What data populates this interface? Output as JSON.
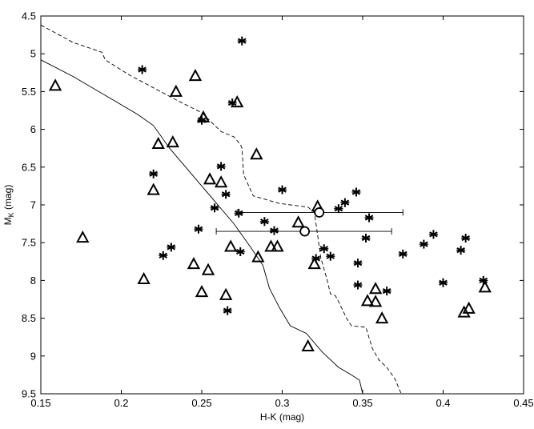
{
  "chart_data": {
    "type": "scatter",
    "title": "",
    "xlabel": "H-K (mag)",
    "ylabel_main": "M",
    "ylabel_sub": "K",
    "ylabel_unit": " (mag)",
    "xlim": [
      0.15,
      0.45
    ],
    "ylim": [
      4.5,
      9.5
    ],
    "y_inverted": true,
    "grid": false,
    "x_ticks": [
      "0.15",
      "0.2",
      "0.25",
      "0.3",
      "0.35",
      "0.4",
      "0.45"
    ],
    "y_ticks": [
      "4.5",
      "5",
      "5.5",
      "6",
      "6.5",
      "7",
      "7.5",
      "8",
      "8.5",
      "9",
      "9.5"
    ],
    "triangles": [
      [
        0.159,
        5.42
      ],
      [
        0.176,
        7.43
      ],
      [
        0.214,
        7.98
      ],
      [
        0.22,
        6.8
      ],
      [
        0.223,
        6.19
      ],
      [
        0.232,
        6.17
      ],
      [
        0.234,
        5.5
      ],
      [
        0.245,
        7.78
      ],
      [
        0.246,
        5.29
      ],
      [
        0.25,
        8.15
      ],
      [
        0.251,
        5.84
      ],
      [
        0.254,
        7.86
      ],
      [
        0.255,
        6.66
      ],
      [
        0.262,
        6.7
      ],
      [
        0.265,
        8.19
      ],
      [
        0.268,
        7.55
      ],
      [
        0.272,
        5.64
      ],
      [
        0.284,
        6.33
      ],
      [
        0.285,
        7.69
      ],
      [
        0.293,
        7.55
      ],
      [
        0.297,
        7.55
      ],
      [
        0.31,
        7.23
      ],
      [
        0.316,
        8.87
      ],
      [
        0.32,
        7.78
      ],
      [
        0.322,
        7.02
      ],
      [
        0.353,
        8.27
      ],
      [
        0.358,
        8.28
      ],
      [
        0.358,
        8.11
      ],
      [
        0.362,
        8.5
      ],
      [
        0.413,
        8.42
      ],
      [
        0.416,
        8.37
      ],
      [
        0.426,
        8.09
      ]
    ],
    "asterisks": [
      [
        0.213,
        5.21
      ],
      [
        0.22,
        6.59
      ],
      [
        0.226,
        7.67
      ],
      [
        0.231,
        7.56
      ],
      [
        0.248,
        7.32
      ],
      [
        0.25,
        5.88
      ],
      [
        0.258,
        7.04
      ],
      [
        0.262,
        6.49
      ],
      [
        0.265,
        6.86
      ],
      [
        0.266,
        8.4
      ],
      [
        0.269,
        5.65
      ],
      [
        0.273,
        7.11
      ],
      [
        0.274,
        7.62
      ],
      [
        0.275,
        4.83
      ],
      [
        0.289,
        7.22
      ],
      [
        0.295,
        7.34
      ],
      [
        0.3,
        6.8
      ],
      [
        0.321,
        7.71
      ],
      [
        0.326,
        7.58
      ],
      [
        0.33,
        7.68
      ],
      [
        0.335,
        7.05
      ],
      [
        0.339,
        6.97
      ],
      [
        0.346,
        6.83
      ],
      [
        0.347,
        7.77
      ],
      [
        0.347,
        8.06
      ],
      [
        0.352,
        7.44
      ],
      [
        0.354,
        7.17
      ],
      [
        0.365,
        8.14
      ],
      [
        0.375,
        7.65
      ],
      [
        0.388,
        7.52
      ],
      [
        0.394,
        7.39
      ],
      [
        0.4,
        8.03
      ],
      [
        0.411,
        7.6
      ],
      [
        0.414,
        7.44
      ],
      [
        0.425,
        8.0
      ]
    ],
    "circles_with_errorbars": [
      {
        "x": 0.323,
        "y": 7.1,
        "xerr": [
          0.272,
          0.375
        ]
      },
      {
        "x": 0.314,
        "y": 7.35,
        "xerr": [
          0.259,
          0.368
        ]
      }
    ],
    "solid_curve": [
      [
        0.15,
        5.08
      ],
      [
        0.17,
        5.3
      ],
      [
        0.19,
        5.55
      ],
      [
        0.21,
        5.8
      ],
      [
        0.22,
        5.95
      ],
      [
        0.23,
        6.25
      ],
      [
        0.24,
        6.5
      ],
      [
        0.25,
        6.75
      ],
      [
        0.26,
        7.0
      ],
      [
        0.27,
        7.25
      ],
      [
        0.28,
        7.55
      ],
      [
        0.288,
        7.8
      ],
      [
        0.292,
        8.1
      ],
      [
        0.298,
        8.35
      ],
      [
        0.305,
        8.6
      ],
      [
        0.315,
        8.7
      ],
      [
        0.325,
        8.95
      ],
      [
        0.335,
        9.15
      ],
      [
        0.343,
        9.25
      ],
      [
        0.348,
        9.32
      ],
      [
        0.35,
        9.5
      ]
    ],
    "dashed_curve": [
      [
        0.15,
        4.62
      ],
      [
        0.17,
        4.85
      ],
      [
        0.188,
        4.98
      ],
      [
        0.19,
        5.08
      ],
      [
        0.205,
        5.28
      ],
      [
        0.22,
        5.45
      ],
      [
        0.235,
        5.62
      ],
      [
        0.25,
        5.78
      ],
      [
        0.262,
        6.03
      ],
      [
        0.27,
        6.1
      ],
      [
        0.274,
        6.2
      ],
      [
        0.275,
        6.25
      ],
      [
        0.276,
        6.6
      ],
      [
        0.282,
        6.88
      ],
      [
        0.298,
        6.98
      ],
      [
        0.316,
        7.03
      ],
      [
        0.32,
        7.1
      ],
      [
        0.322,
        7.4
      ],
      [
        0.324,
        7.7
      ],
      [
        0.328,
        8.0
      ],
      [
        0.33,
        8.18
      ],
      [
        0.333,
        8.2
      ],
      [
        0.335,
        8.28
      ],
      [
        0.34,
        8.5
      ],
      [
        0.343,
        8.6
      ],
      [
        0.352,
        8.62
      ],
      [
        0.356,
        8.9
      ],
      [
        0.36,
        9.05
      ],
      [
        0.365,
        9.15
      ],
      [
        0.37,
        9.3
      ],
      [
        0.374,
        9.5
      ]
    ]
  }
}
